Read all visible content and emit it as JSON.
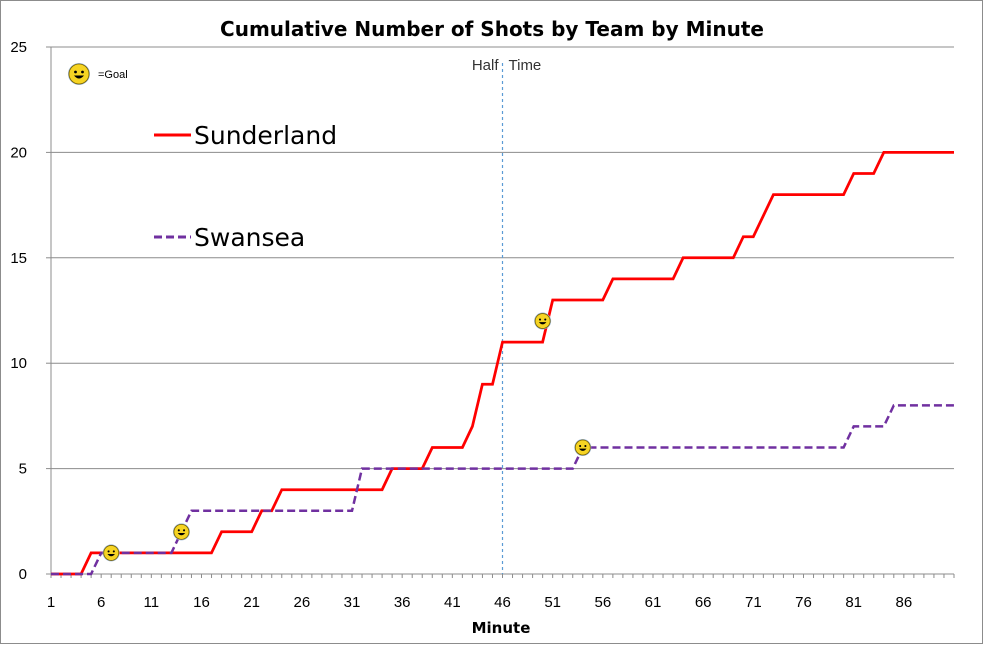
{
  "chart_data": {
    "type": "line",
    "title": "Cumulative Number of Shots by Team by Minute",
    "xlabel": "Minute",
    "ylabel": "",
    "xlim": [
      1,
      91
    ],
    "ylim": [
      0,
      25
    ],
    "x_ticks": [
      1,
      6,
      11,
      16,
      21,
      26,
      31,
      36,
      41,
      46,
      51,
      56,
      61,
      66,
      71,
      76,
      81,
      86
    ],
    "y_ticks": [
      0,
      5,
      10,
      15,
      20,
      25
    ],
    "grid": "horizontal",
    "goal_key_label": "=Goal",
    "half_time": {
      "x": 46,
      "label_left": "Half",
      "label_right": "Time"
    },
    "series": [
      {
        "name": "Sunderland",
        "color": "#ff0000",
        "dash": "solid",
        "x": [
          1,
          4,
          5,
          6,
          7,
          17,
          18,
          21,
          22,
          23,
          24,
          33,
          34,
          35,
          38,
          39,
          41,
          42,
          43,
          44,
          45,
          46,
          47,
          50,
          51,
          52,
          56,
          57,
          63,
          64,
          69,
          70,
          71,
          72,
          73,
          80,
          81,
          83,
          84,
          91
        ],
        "y": [
          0,
          0,
          1,
          1,
          1,
          1,
          2,
          2,
          3,
          3,
          4,
          4,
          4,
          5,
          5,
          6,
          6,
          6,
          7,
          9,
          9,
          11,
          11,
          11,
          13,
          13,
          13,
          14,
          14,
          15,
          15,
          16,
          16,
          17,
          18,
          18,
          19,
          19,
          20,
          20
        ]
      },
      {
        "name": "Swansea",
        "color": "#7030a0",
        "dash": "dashed",
        "x": [
          1,
          5,
          6,
          13,
          14,
          15,
          31,
          32,
          53,
          54,
          80,
          81,
          84,
          85,
          91
        ],
        "y": [
          0,
          0,
          1,
          1,
          2,
          3,
          3,
          5,
          5,
          6,
          6,
          7,
          7,
          8,
          8
        ]
      }
    ],
    "goals": [
      {
        "team": "Swansea",
        "x": 7,
        "y": 1
      },
      {
        "team": "Swansea",
        "x": 14,
        "y": 2
      },
      {
        "team": "Sunderland",
        "x": 50,
        "y": 12
      },
      {
        "team": "Swansea",
        "x": 54,
        "y": 6
      }
    ],
    "legend": [
      {
        "name": "Sunderland",
        "color": "#ff0000",
        "dash": "solid"
      },
      {
        "name": "Swansea",
        "color": "#7030a0",
        "dash": "dashed"
      }
    ]
  }
}
